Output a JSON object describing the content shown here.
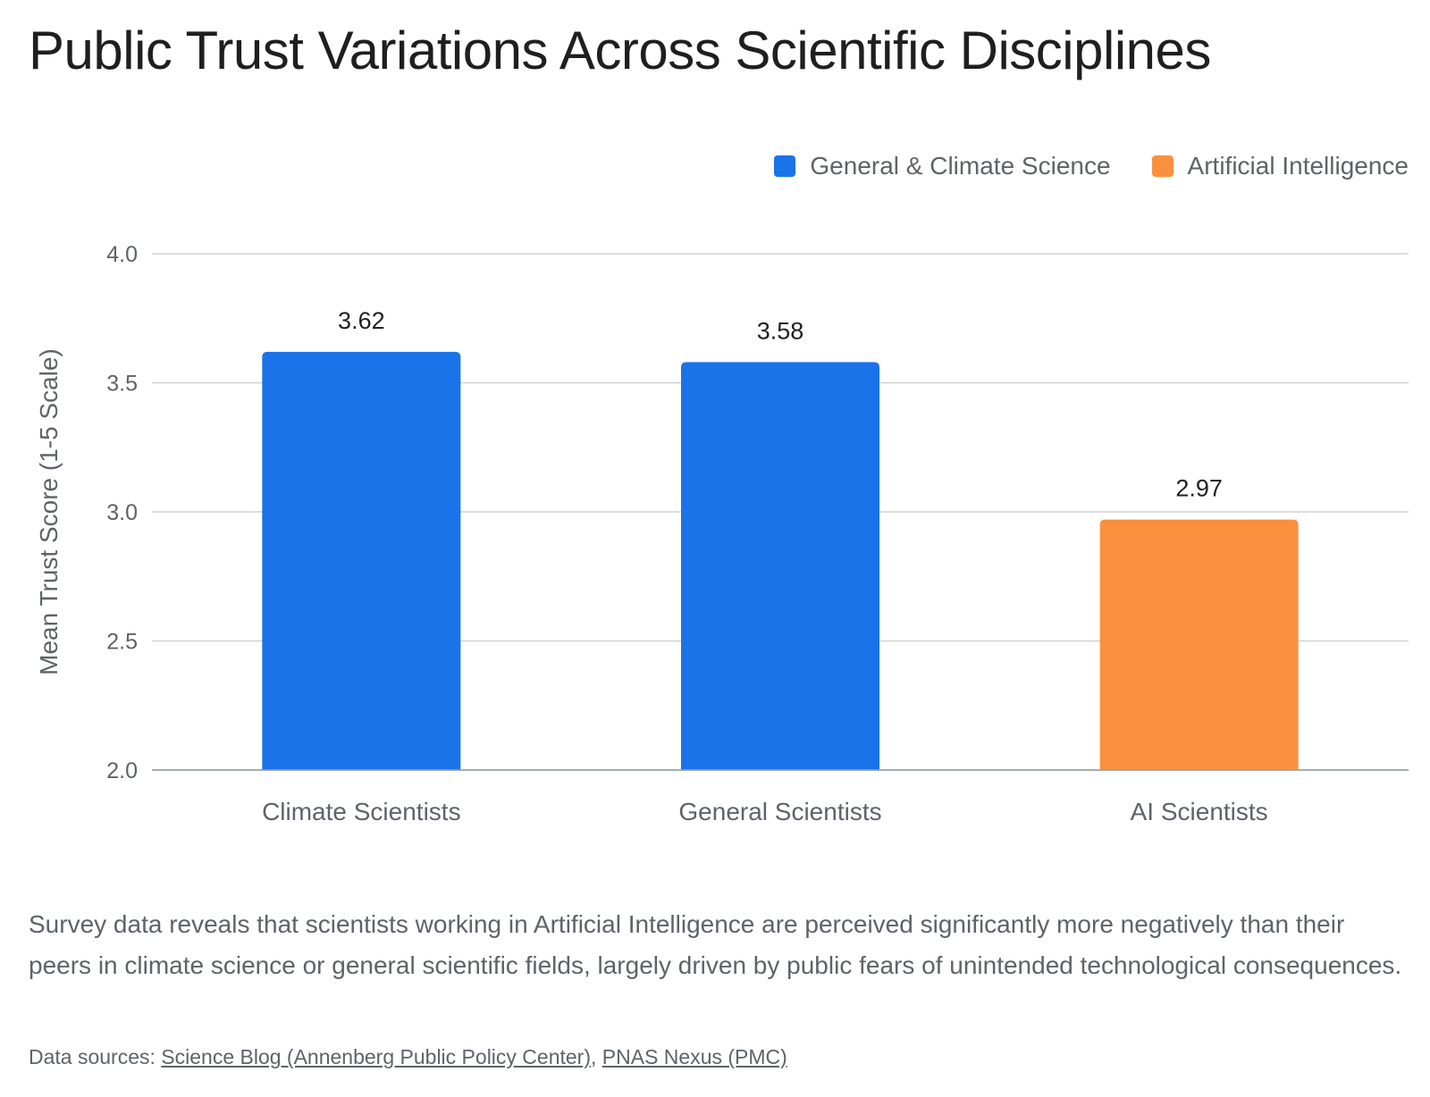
{
  "page": {
    "title": "Public Trust Variations Across Scientific Disciplines",
    "description": "Survey data reveals that scientists working in Artificial Intelligence are perceived significantly more negatively than their peers in climate science or general scientific fields, largely driven by public fears of unintended technological consequences.",
    "sources": {
      "prefix": "Data sources: ",
      "links": [
        {
          "label": "Science Blog (Annenberg Public Policy Center)"
        },
        {
          "label": "PNAS Nexus (PMC)"
        }
      ],
      "separator": ", "
    }
  },
  "chart_data": {
    "type": "bar",
    "title": "Public Trust Variations Across Scientific Disciplines",
    "xlabel": "",
    "ylabel": "Mean Trust Score (1-5 Scale)",
    "ylim": [
      2.0,
      4.0
    ],
    "yticks": [
      "2.0",
      "2.5",
      "3.0",
      "3.5",
      "4.0"
    ],
    "ytick_values": [
      2.0,
      2.5,
      3.0,
      3.5,
      4.0
    ],
    "grid": true,
    "legend_position": "top-right",
    "legend": [
      {
        "label": "General & Climate Science",
        "color": "#1a73e8"
      },
      {
        "label": "Artificial Intelligence",
        "color": "#fa903e"
      }
    ],
    "categories": [
      "Climate Scientists",
      "General Scientists",
      "AI Scientists"
    ],
    "values": [
      3.62,
      3.58,
      2.97
    ],
    "value_labels": [
      "3.62",
      "3.58",
      "2.97"
    ],
    "bar_colors": [
      "#1a73e8",
      "#1a73e8",
      "#fa903e"
    ]
  }
}
